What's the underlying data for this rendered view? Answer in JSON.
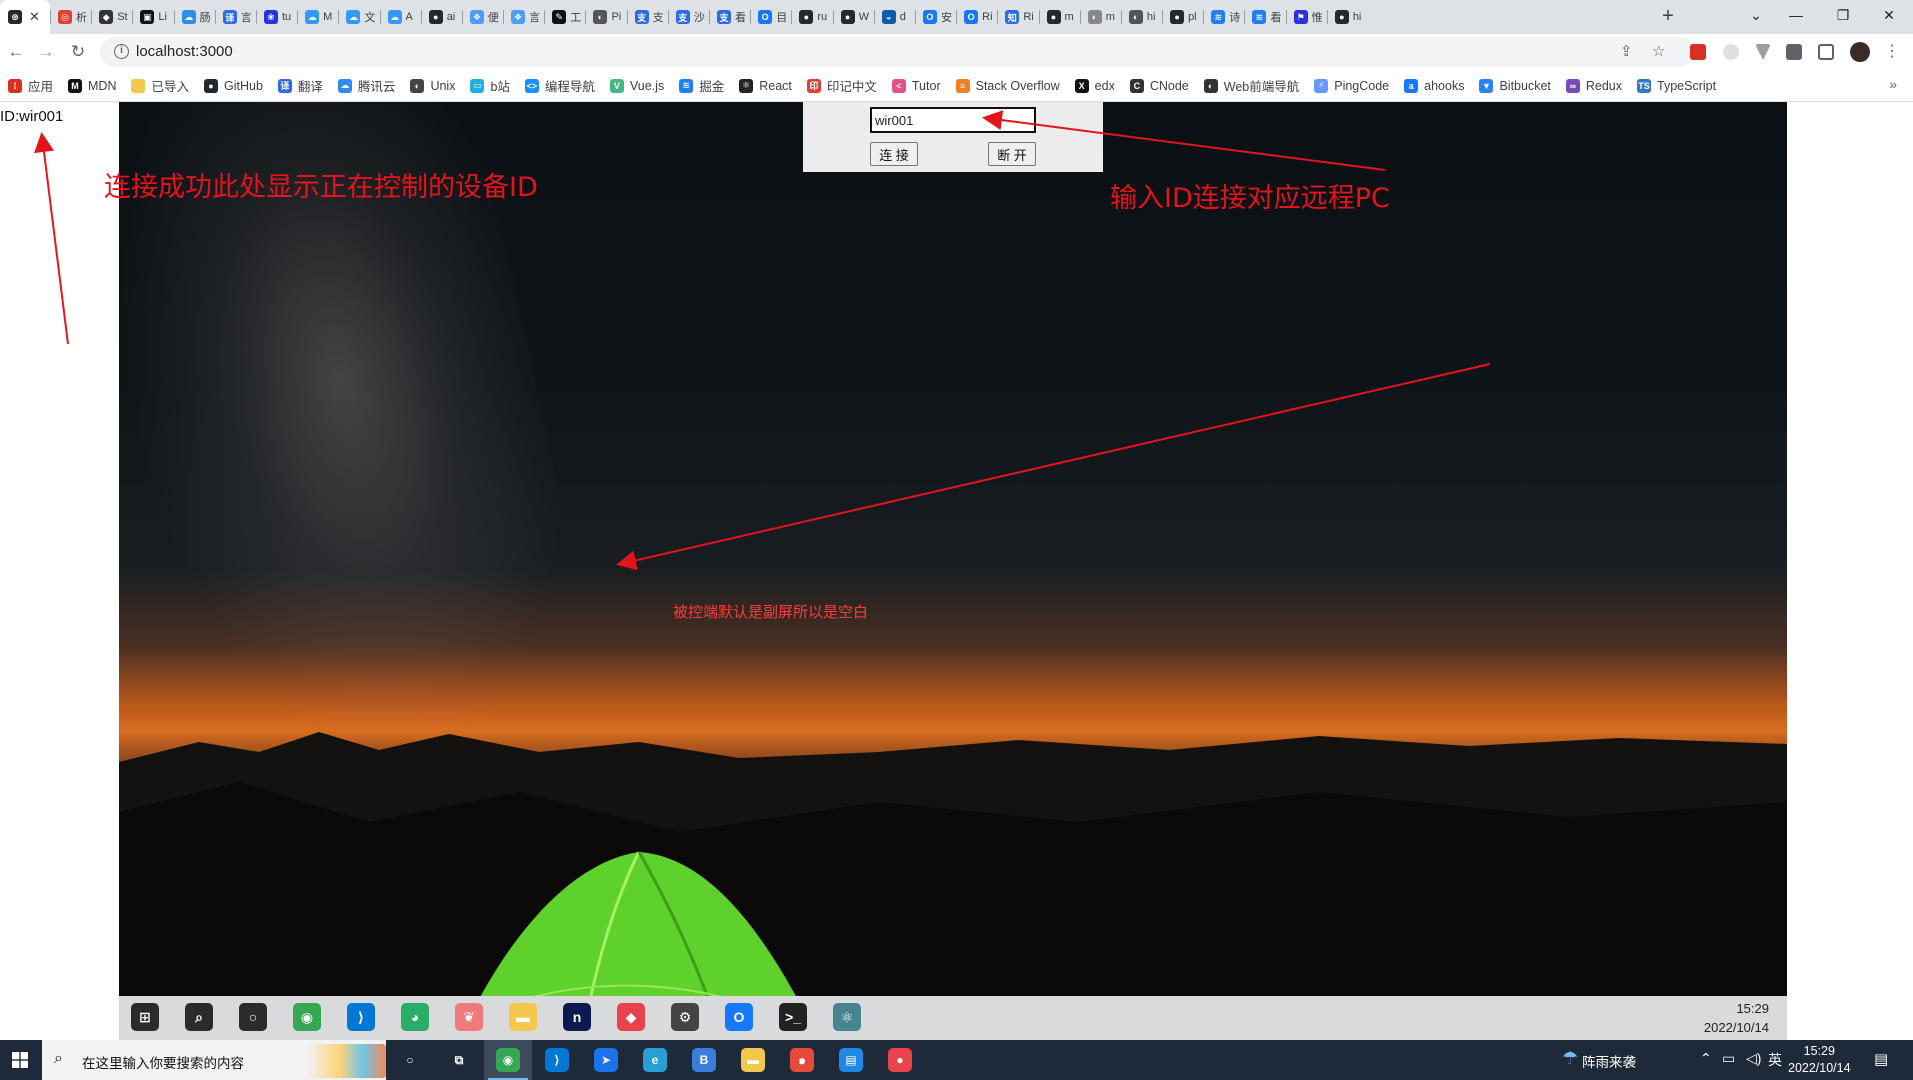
{
  "browser": {
    "tabs": [
      {
        "title": "",
        "color": "#24292f",
        "glyph": "⊛",
        "active": true
      },
      {
        "title": "析",
        "color": "#e33e33",
        "glyph": "◎"
      },
      {
        "title": "St",
        "color": "#333333",
        "glyph": "◆"
      },
      {
        "title": "Li",
        "color": "#111111",
        "glyph": "▣"
      },
      {
        "title": "肠",
        "color": "#2d8cf0",
        "glyph": "☁"
      },
      {
        "title": "言",
        "color": "#2b6be6",
        "glyph": "译"
      },
      {
        "title": "tu",
        "color": "#2932e1",
        "glyph": "❀"
      },
      {
        "title": "M",
        "color": "#3399ff",
        "glyph": "☁"
      },
      {
        "title": "文",
        "color": "#3399ff",
        "glyph": "☁"
      },
      {
        "title": "A",
        "color": "#3399ff",
        "glyph": "☁"
      },
      {
        "title": "ai",
        "color": "#24292f",
        "glyph": "●"
      },
      {
        "title": "便",
        "color": "#4f9cff",
        "glyph": "❖"
      },
      {
        "title": "言",
        "color": "#4f9cff",
        "glyph": "❖"
      },
      {
        "title": "工",
        "color": "#111111",
        "glyph": "✎"
      },
      {
        "title": "Pi",
        "color": "#555555",
        "glyph": "◐"
      },
      {
        "title": "支",
        "color": "#2b6be6",
        "glyph": "支"
      },
      {
        "title": "沙",
        "color": "#2b6be6",
        "glyph": "支"
      },
      {
        "title": "看",
        "color": "#2b6be6",
        "glyph": "支"
      },
      {
        "title": "目",
        "color": "#1677ff",
        "glyph": "O"
      },
      {
        "title": "ru",
        "color": "#24292f",
        "glyph": "●"
      },
      {
        "title": "W",
        "color": "#24292f",
        "glyph": "●"
      },
      {
        "title": "d",
        "color": "#0b5cad",
        "glyph": "◒"
      },
      {
        "title": "安",
        "color": "#1677ff",
        "glyph": "O"
      },
      {
        "title": "Ri",
        "color": "#1677ff",
        "glyph": "O"
      },
      {
        "title": "Ri",
        "color": "#2b6be6",
        "glyph": "知"
      },
      {
        "title": "m",
        "color": "#24292f",
        "glyph": "●"
      },
      {
        "title": "m",
        "color": "#888888",
        "glyph": "◐"
      },
      {
        "title": "hi",
        "color": "#555555",
        "glyph": "◐"
      },
      {
        "title": "pl",
        "color": "#24292f",
        "glyph": "●"
      },
      {
        "title": "诗",
        "color": "#1e80ff",
        "glyph": "≋"
      },
      {
        "title": "看",
        "color": "#1e80ff",
        "glyph": "≋"
      },
      {
        "title": "惟",
        "color": "#2932e1",
        "glyph": "⚑"
      },
      {
        "title": "hi",
        "color": "#24292f",
        "glyph": "●"
      }
    ],
    "new_tab": "+",
    "url": "localhost:3000",
    "window_controls": {
      "dropdown": "⌄",
      "minimize": "—",
      "restore": "❐",
      "close": "✕"
    }
  },
  "bookmarks": [
    {
      "label": "应用",
      "color": "#d93025",
      "glyph": "⁞"
    },
    {
      "label": "MDN",
      "color": "#111111",
      "glyph": "M"
    },
    {
      "label": "已导入",
      "color": "#f2c94c",
      "glyph": ""
    },
    {
      "label": "GitHub",
      "color": "#24292f",
      "glyph": "●"
    },
    {
      "label": "翻译",
      "color": "#2b6be6",
      "glyph": "译"
    },
    {
      "label": "腾讯云",
      "color": "#2d8cf0",
      "glyph": "☁"
    },
    {
      "label": "Unix",
      "color": "#444444",
      "glyph": "◐"
    },
    {
      "label": "b站",
      "color": "#23ade5",
      "glyph": "▭"
    },
    {
      "label": "编程导航",
      "color": "#1890ff",
      "glyph": "<>"
    },
    {
      "label": "Vue.js",
      "color": "#42b883",
      "glyph": "V"
    },
    {
      "label": "掘金",
      "color": "#1e80ff",
      "glyph": "≋"
    },
    {
      "label": "React",
      "color": "#222222",
      "glyph": "⚛"
    },
    {
      "label": "印记中文",
      "color": "#e33e33",
      "glyph": "印"
    },
    {
      "label": "Tutor",
      "color": "#e8508a",
      "glyph": "<"
    },
    {
      "label": "Stack Overflow",
      "color": "#f48024",
      "glyph": "≡"
    },
    {
      "label": "edx",
      "color": "#111111",
      "glyph": "X"
    },
    {
      "label": "CNode",
      "color": "#333333",
      "glyph": "C"
    },
    {
      "label": "Web前端导航",
      "color": "#333333",
      "glyph": "◐"
    },
    {
      "label": "PingCode",
      "color": "#6698ff",
      "glyph": "⚡"
    },
    {
      "label": "ahooks",
      "color": "#1677ff",
      "glyph": "a"
    },
    {
      "label": "Bitbucket",
      "color": "#2684ff",
      "glyph": "▼"
    },
    {
      "label": "Redux",
      "color": "#764abc",
      "glyph": "∞"
    },
    {
      "label": "TypeScript",
      "color": "#3178c6",
      "glyph": "TS"
    }
  ],
  "bookmarks_more": "»",
  "app": {
    "device_id_label": "ID:wir001",
    "id_input_value": "wir001",
    "connect_button": "连 接",
    "disconnect_button": "断 开"
  },
  "annotations": {
    "left": "连接成功此处显示正在控制的设备ID",
    "right": "输入ID连接对应远程PC",
    "center": "被控端默认是副屏所以是空白",
    "color": "#e3141b"
  },
  "remote_taskbar": {
    "apps": [
      {
        "name": "windows-start",
        "color": "#2b2b2b",
        "glyph": "⊞"
      },
      {
        "name": "search",
        "color": "#2b2b2b",
        "glyph": "⌕"
      },
      {
        "name": "cortana",
        "color": "#2b2b2b",
        "glyph": "○"
      },
      {
        "name": "chrome",
        "color": "#34a853",
        "glyph": "◉"
      },
      {
        "name": "vscode",
        "color": "#0078d4",
        "glyph": "⟩"
      },
      {
        "name": "wechat",
        "color": "#2aae67",
        "glyph": "◕"
      },
      {
        "name": "app-pig",
        "color": "#f07a7a",
        "glyph": "❦"
      },
      {
        "name": "file-explorer",
        "color": "#f2c94c",
        "glyph": "▬"
      },
      {
        "name": "app-n",
        "color": "#0d1a4f",
        "glyph": "n"
      },
      {
        "name": "app-red",
        "color": "#e8424b",
        "glyph": "◆"
      },
      {
        "name": "settings",
        "color": "#444444",
        "glyph": "⚙"
      },
      {
        "name": "app-blue",
        "color": "#1677ff",
        "glyph": "O"
      },
      {
        "name": "terminal",
        "color": "#222222",
        "glyph": ">_"
      },
      {
        "name": "electron",
        "color": "#47848f",
        "glyph": "⚛"
      }
    ],
    "time": "15:29",
    "date": "2022/10/14"
  },
  "taskbar": {
    "search_placeholder": "在这里输入你要搜索的内容",
    "apps": [
      {
        "name": "task-view",
        "color": "#1e2a3a",
        "glyph": "○"
      },
      {
        "name": "multitask",
        "color": "#1e2a3a",
        "glyph": "⧉"
      },
      {
        "name": "chrome",
        "color": "#34a853",
        "glyph": "◉",
        "active": true
      },
      {
        "name": "vscode",
        "color": "#0078d4",
        "glyph": "⟩"
      },
      {
        "name": "app-blue-arrow",
        "color": "#1a73e8",
        "glyph": "➤"
      },
      {
        "name": "edge-dev",
        "color": "#28a0d6",
        "glyph": "e"
      },
      {
        "name": "app-b",
        "color": "#3b7ddd",
        "glyph": "B"
      },
      {
        "name": "file-explorer",
        "color": "#f2c94c",
        "glyph": "▬"
      },
      {
        "name": "app-swirl",
        "color": "#e84a3a",
        "glyph": "๑"
      },
      {
        "name": "app-slides",
        "color": "#1e88e5",
        "glyph": "▤"
      },
      {
        "name": "app-red-circle",
        "color": "#e8424b",
        "glyph": "●"
      }
    ],
    "weather": "阵雨来袭",
    "ime": "英",
    "time": "15:29",
    "date": "2022/10/14"
  }
}
